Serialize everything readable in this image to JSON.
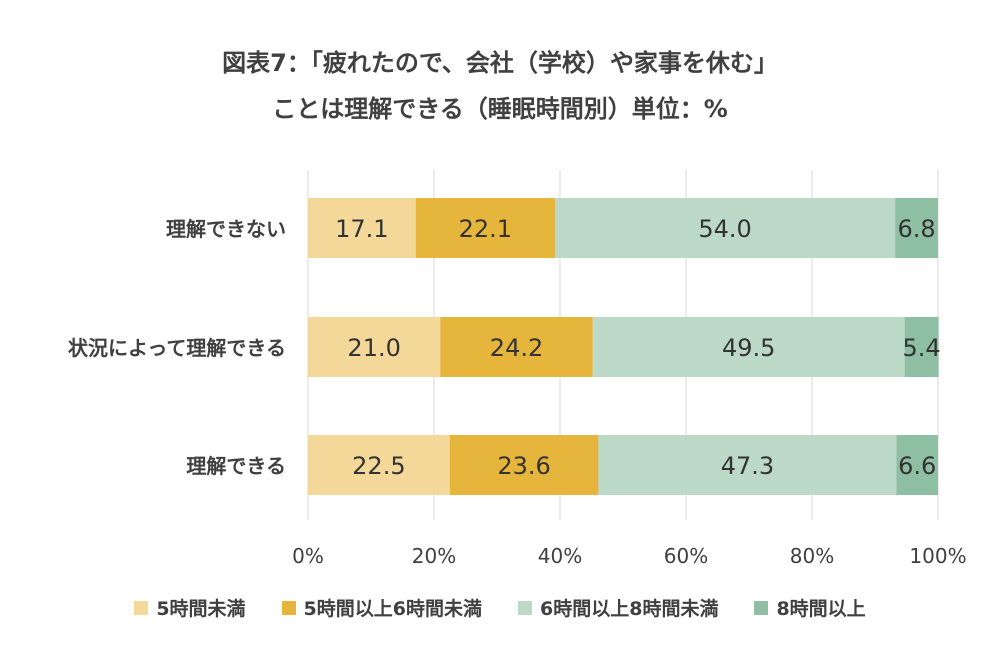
{
  "chart_data": {
    "type": "bar",
    "orientation": "horizontal",
    "stacked": true,
    "title_lines": [
      "図表7：「疲れたので、会社（学校）や家事を休む」",
      "ことは理解できる（睡眠時間別）単位：%"
    ],
    "categories": [
      "理解できない",
      "状況によって理解できる",
      "理解できる"
    ],
    "series": [
      {
        "name": "5時間未満",
        "color": "#f3d89a",
        "values": [
          17.1,
          21.0,
          22.5
        ],
        "labels": [
          "17.1",
          "21.0",
          "22.5"
        ]
      },
      {
        "name": "5時間以上6時間未満",
        "color": "#e6b53c",
        "values": [
          22.1,
          24.2,
          23.6
        ],
        "labels": [
          "22.1",
          "24.2",
          "23.6"
        ]
      },
      {
        "name": "6時間以上8時間未満",
        "color": "#bcd9c8",
        "values": [
          54.0,
          49.5,
          47.3
        ],
        "labels": [
          "54.0",
          "49.5",
          "47.3"
        ]
      },
      {
        "name": "8時間以上",
        "color": "#8fbfa3",
        "values": [
          6.8,
          5.4,
          6.6
        ],
        "labels": [
          "6.8",
          "5.4",
          "6.6"
        ]
      }
    ],
    "xlim": [
      0,
      100
    ],
    "xticks": [
      "0%",
      "20%",
      "40%",
      "60%",
      "80%",
      "100%"
    ],
    "grid": true,
    "legend_position": "bottom"
  }
}
